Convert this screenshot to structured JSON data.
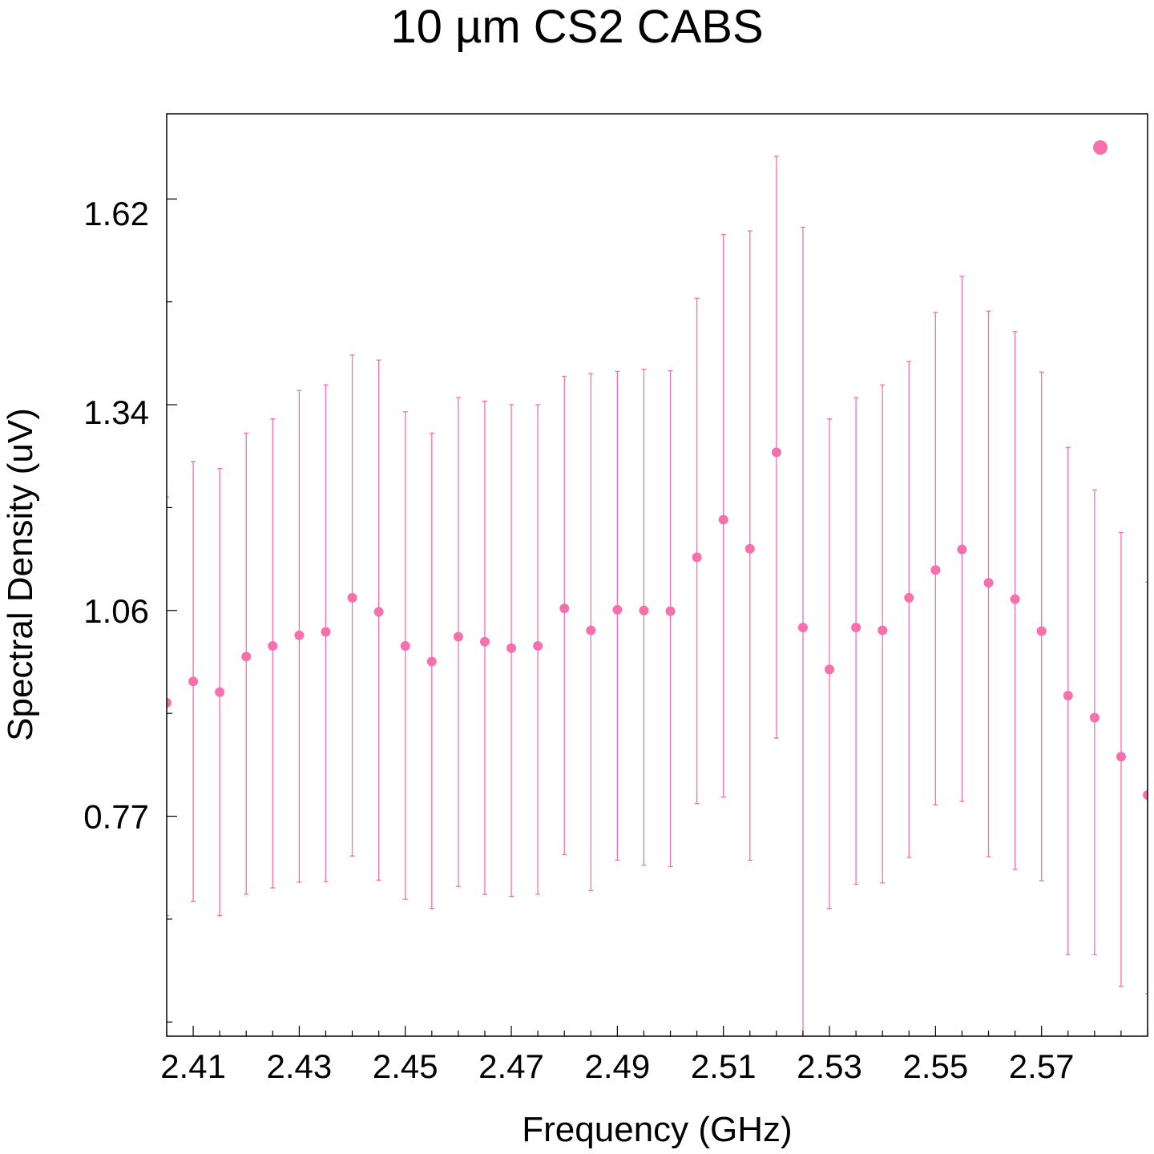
{
  "chart_data": {
    "type": "scatter",
    "title": "10 µm CS2 CABS",
    "xlabel": "Frequency (GHz)",
    "ylabel": "Spectral Density (uV)",
    "xlim": [
      2.405,
      2.59
    ],
    "ylim": [
      0.46,
      1.76
    ],
    "x_ticks": [
      2.41,
      2.43,
      2.45,
      2.47,
      2.49,
      2.51,
      2.53,
      2.55,
      2.57
    ],
    "x_tick_labels": [
      "2.41",
      "2.43",
      "2.45",
      "2.47",
      "2.49",
      "2.51",
      "2.53",
      "2.55",
      "2.57"
    ],
    "y_ticks": [
      0.77,
      1.06,
      1.34,
      1.62
    ],
    "y_tick_labels": [
      "0.77",
      "1.06",
      "1.34",
      "1.62"
    ],
    "grid": false,
    "legend": "top-right",
    "color": "#f76fac",
    "series": [
      {
        "x": [
          2.405,
          2.41,
          2.415,
          2.42,
          2.425,
          2.43,
          2.435,
          2.44,
          2.445,
          2.45,
          2.455,
          2.46,
          2.465,
          2.47,
          2.475,
          2.48,
          2.485,
          2.49,
          2.495,
          2.5,
          2.505,
          2.51,
          2.515,
          2.52,
          2.525,
          2.53,
          2.535,
          2.54,
          2.545,
          2.55,
          2.555,
          2.56,
          2.565,
          2.57,
          2.575,
          2.58,
          2.585,
          2.59
        ],
        "y": [
          0.93,
          0.96,
          0.945,
          0.995,
          1.01,
          1.025,
          1.03,
          1.078,
          1.058,
          1.01,
          0.988,
          1.023,
          1.016,
          1.007,
          1.01,
          1.063,
          1.032,
          1.061,
          1.06,
          1.059,
          1.135,
          1.188,
          1.147,
          1.283,
          1.036,
          0.977,
          1.036,
          1.032,
          1.078,
          1.117,
          1.146,
          1.099,
          1.076,
          1.031,
          0.94,
          0.909,
          0.854,
          0.8
        ],
        "y_upper": [
          1.22,
          1.27,
          1.26,
          1.31,
          1.33,
          1.37,
          1.378,
          1.42,
          1.413,
          1.34,
          1.31,
          1.36,
          1.355,
          1.35,
          1.35,
          1.39,
          1.394,
          1.397,
          1.4,
          1.398,
          1.5,
          1.59,
          1.595,
          1.7,
          1.6,
          1.33,
          1.36,
          1.378,
          1.411,
          1.48,
          1.531,
          1.482,
          1.453,
          1.396,
          1.29,
          1.23,
          1.17,
          1.1
        ],
        "y_lower": [
          0.63,
          0.65,
          0.63,
          0.66,
          0.669,
          0.677,
          0.678,
          0.714,
          0.68,
          0.653,
          0.64,
          0.671,
          0.66,
          0.657,
          0.66,
          0.716,
          0.665,
          0.708,
          0.701,
          0.699,
          0.788,
          0.797,
          0.708,
          0.88,
          0.46,
          0.64,
          0.674,
          0.676,
          0.712,
          0.786,
          0.791,
          0.713,
          0.695,
          0.679,
          0.575,
          0.575,
          0.53,
          0.52
        ]
      }
    ],
    "legend_marker": true
  }
}
